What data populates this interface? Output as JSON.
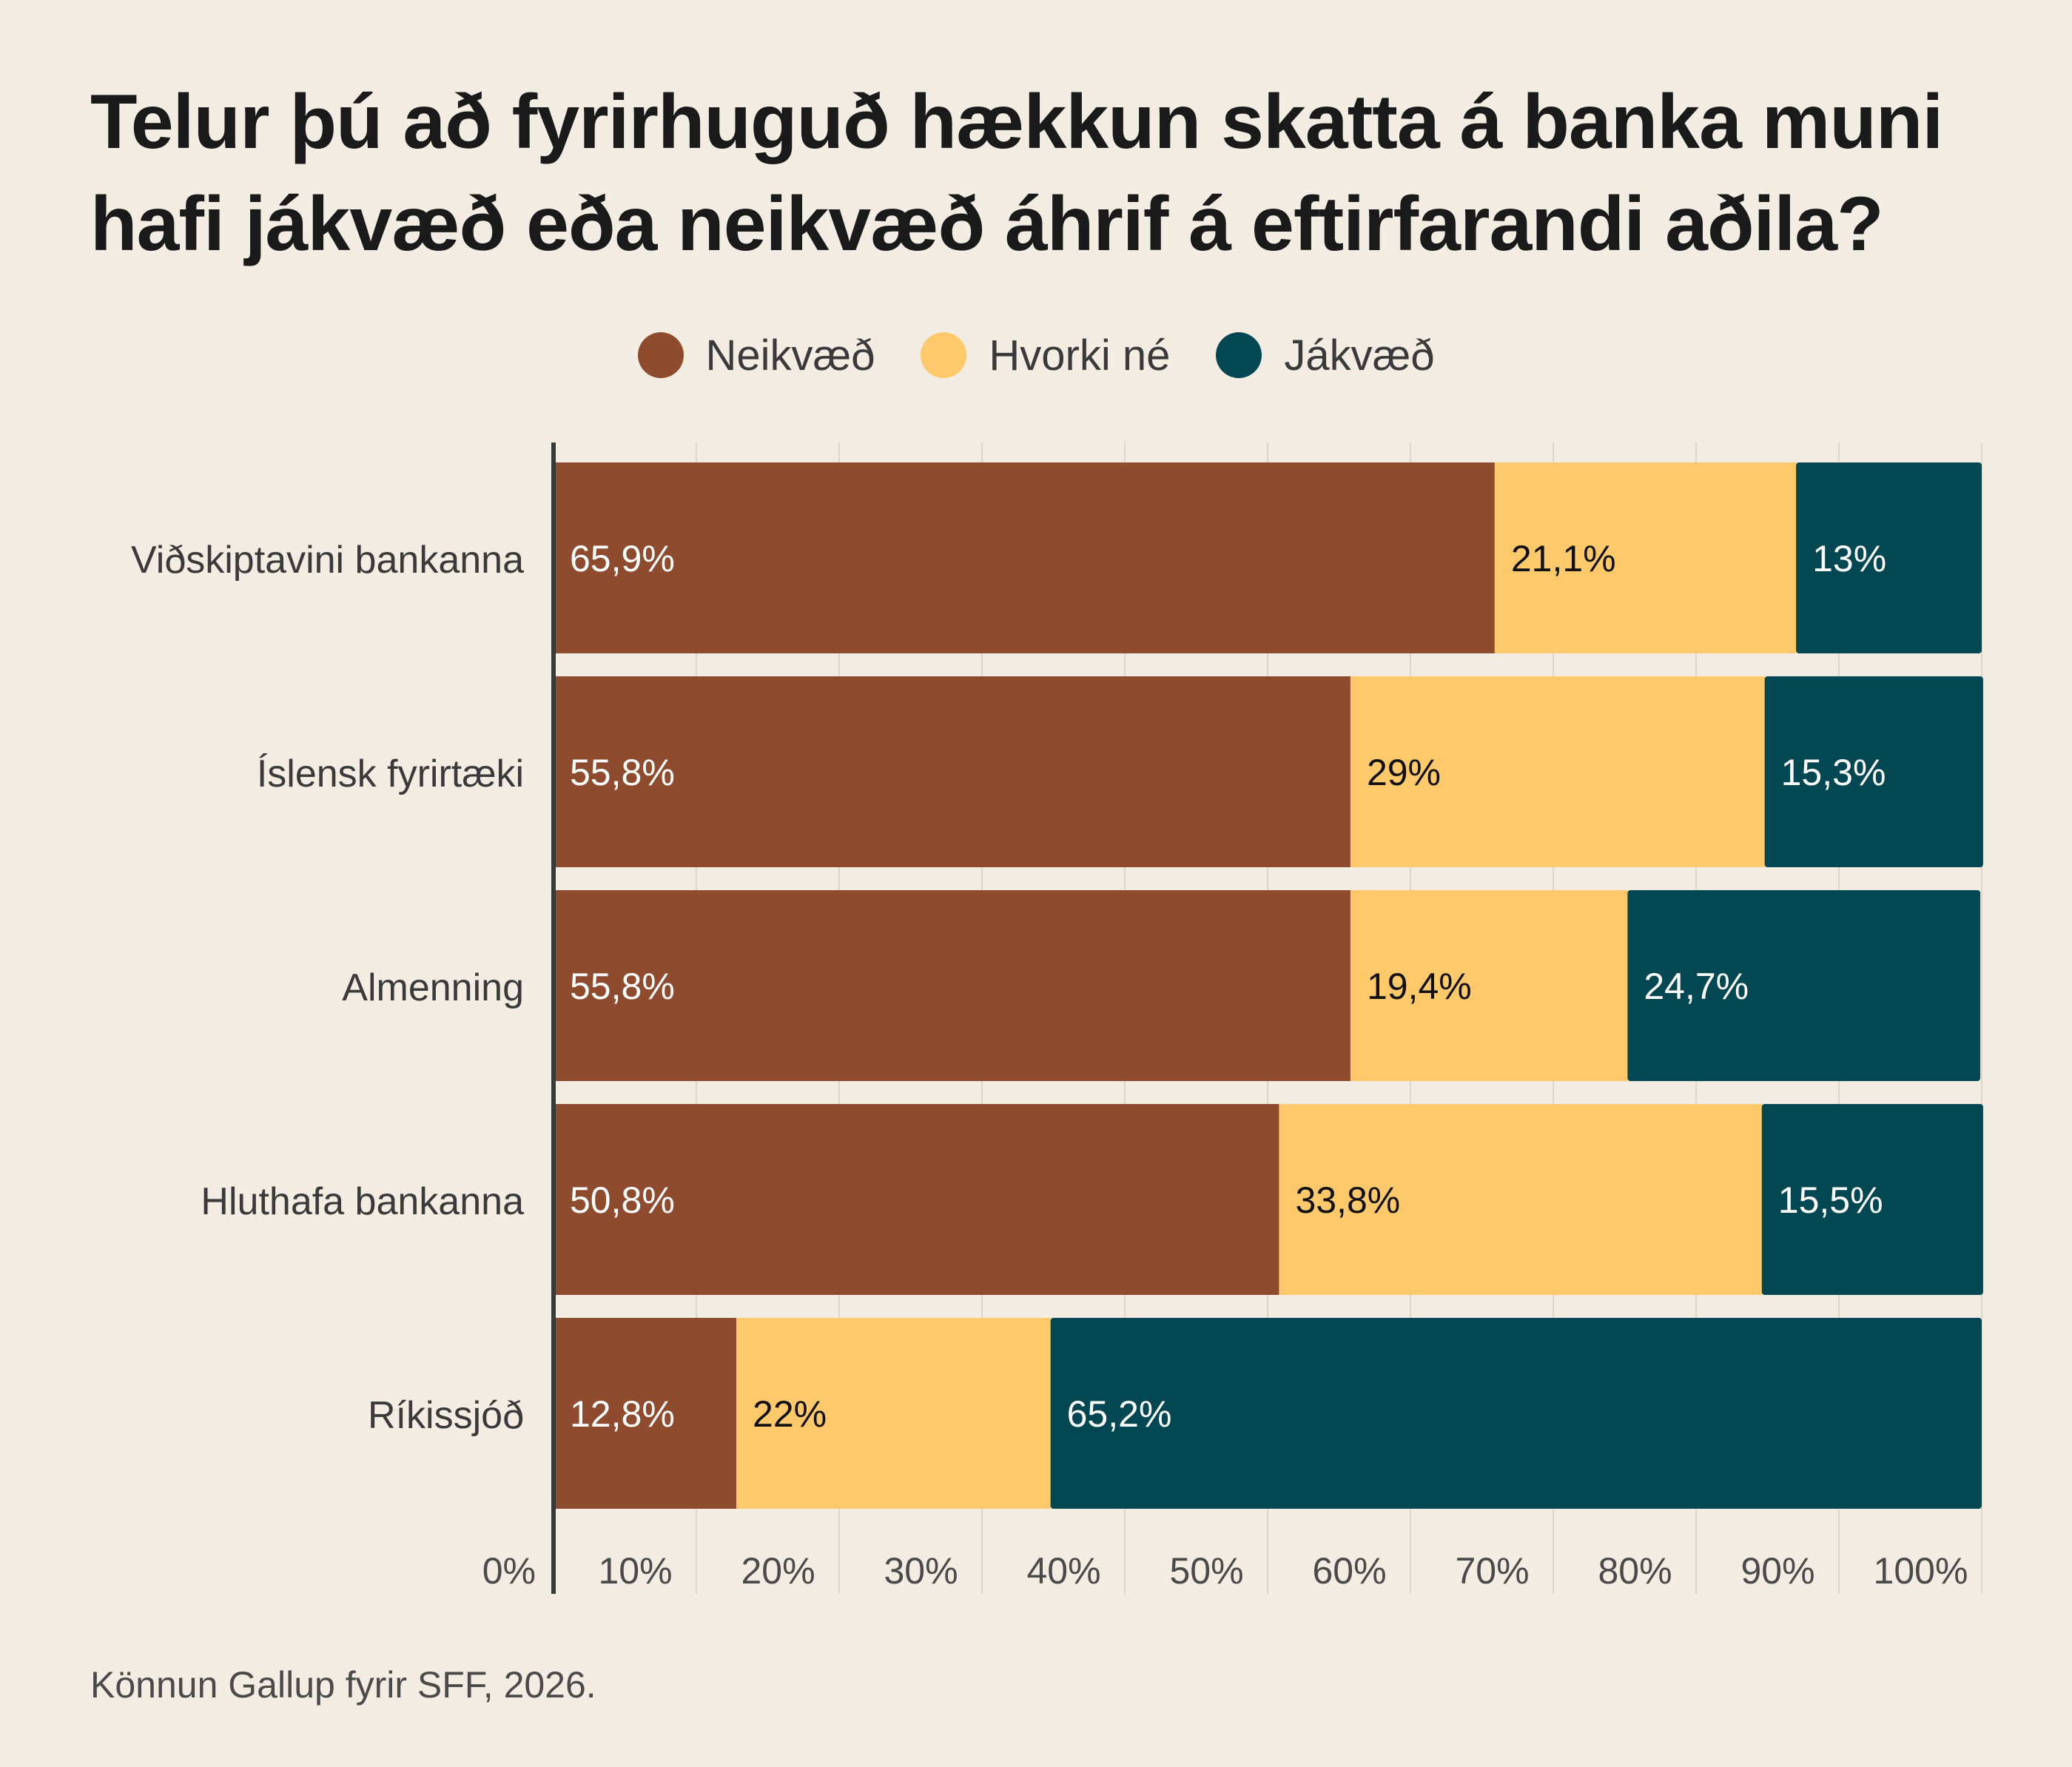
{
  "chart_data": {
    "type": "bar",
    "orientation": "horizontal",
    "stacked": true,
    "title": "Telur þú að fyrirhuguð hækkun skatta á banka muni hafi jákvæð eða neikvæð áhrif á eftirfarandi aðila?",
    "categories": [
      "Viðskiptavini bankanna",
      "Íslensk fyrirtæki",
      "Almenning",
      "Hluthafa bankanna",
      "Ríkissjóð"
    ],
    "series": [
      {
        "name": "Neikvæð",
        "color": "#8f4b2e",
        "label_color": "#ffffff",
        "values": [
          65.9,
          55.8,
          55.8,
          50.8,
          12.8
        ],
        "labels": [
          "65,9%",
          "55,8%",
          "55,8%",
          "50,8%",
          "12,8%"
        ]
      },
      {
        "name": "Hvorki né",
        "color": "#fec96a",
        "label_color": "#111111",
        "values": [
          21.1,
          29,
          19.4,
          33.8,
          22
        ],
        "labels": [
          "21,1%",
          "29%",
          "19,4%",
          "33,8%",
          "22%"
        ]
      },
      {
        "name": "Jákvæð",
        "color": "#024752",
        "label_color": "#ffffff",
        "values": [
          13,
          15.3,
          24.7,
          15.5,
          65.2
        ],
        "labels": [
          "13%",
          "15,3%",
          "24,7%",
          "15,5%",
          "65,2%"
        ]
      }
    ],
    "xlim": [
      0,
      100
    ],
    "x_ticks": [
      "0%",
      "10%",
      "20%",
      "30%",
      "40%",
      "50%",
      "60%",
      "70%",
      "80%",
      "90%",
      "100%"
    ],
    "grid": true,
    "legend_position": "top-center"
  },
  "source": "Könnun Gallup fyrir SFF, 2026."
}
